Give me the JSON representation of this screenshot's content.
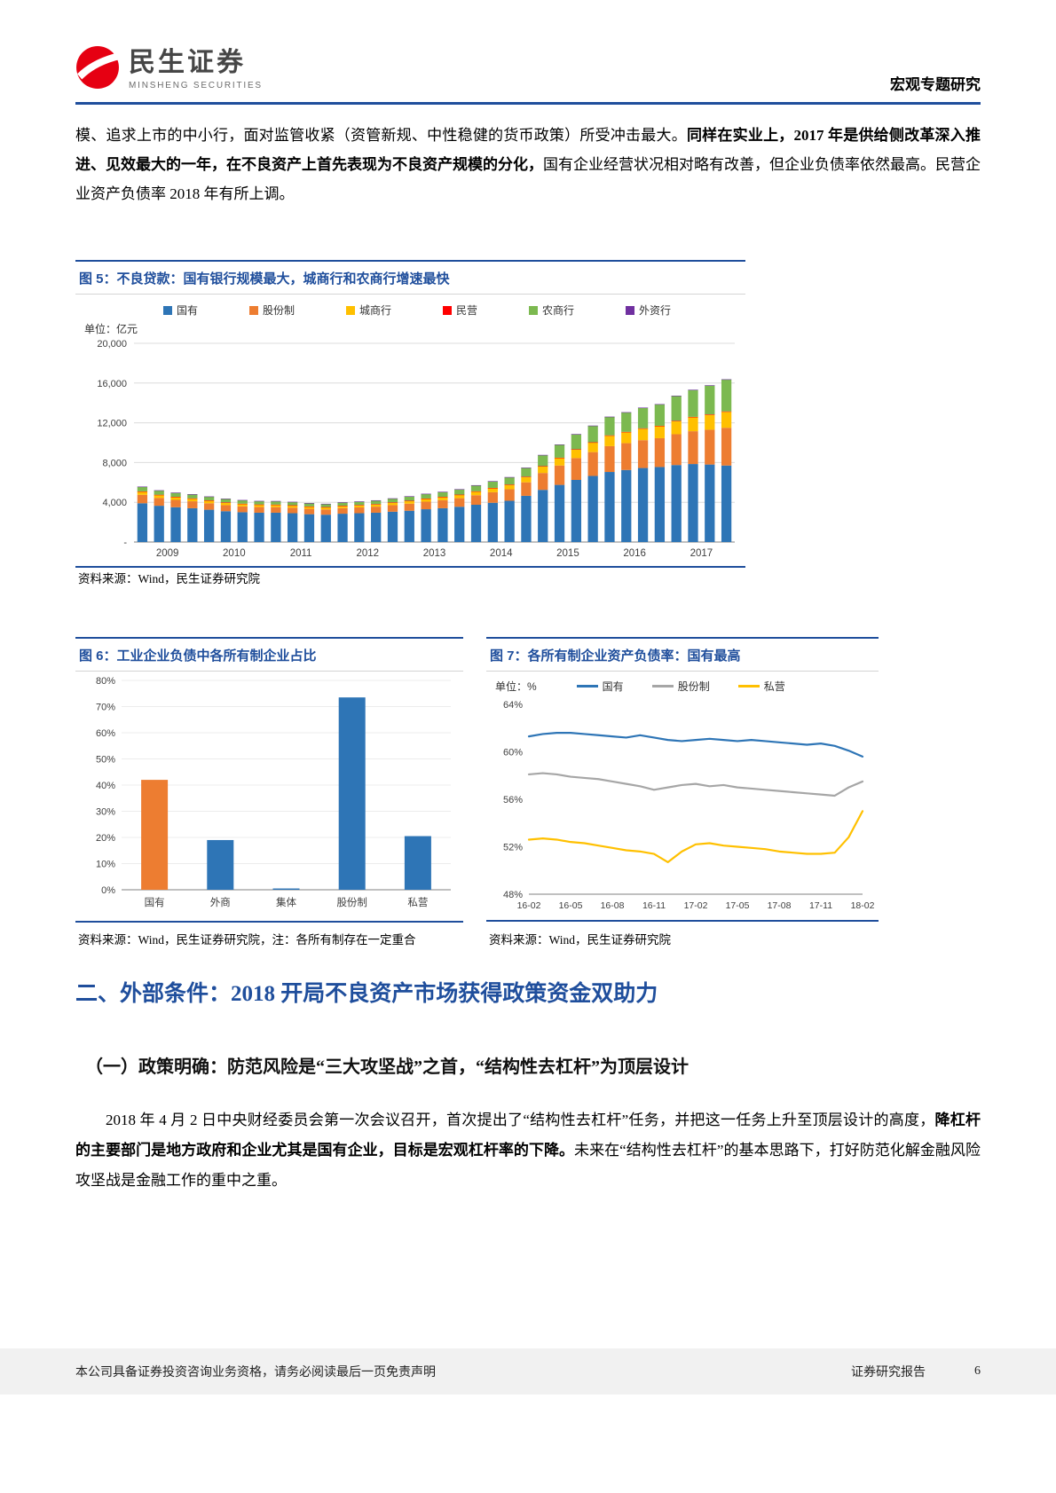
{
  "header": {
    "brand_cn": "民生证券",
    "brand_en": "MINSHENG SECURITIES",
    "report_type": "宏观专题研究"
  },
  "paragraph1": {
    "seg1": "模、追求上市的中小行，面对监管收紧（资管新规、中性稳健的货币政策）所受冲击最大。",
    "seg2_bold": "同样在实业上，2017 年是供给侧改革深入推进、见效最大的一年，在不良资产上首先表现为不良资产规模的分化，",
    "seg3": "国有企业经营状况相对略有改善，但企业负债率依然最高。民营企业资产负债率 2018 年有所上调。"
  },
  "figure5": {
    "title": "图 5：不良贷款：国有银行规模最大，城商行和农商行增速最快",
    "unit": "单位：亿元",
    "source": "资料来源：Wind，民生证券研究院"
  },
  "figure6": {
    "title": "图 6：工业企业负债中各所有制企业占比",
    "source": "资料来源：Wind，民生证券研究院，注：各所有制存在一定重合"
  },
  "figure7": {
    "title": "图 7：各所有制企业资产负债率：国有最高",
    "unit": "单位：%",
    "source": "资料来源：Wind，民生证券研究院"
  },
  "section": {
    "heading": "二、外部条件：2018 开局不良资产市场获得政策资金双助力",
    "subheading": "（一）政策明确：防范风险是“三大攻坚战”之首，“结构性去杠杆”为顶层设计"
  },
  "paragraph2": {
    "seg1": "2018 年 4 月 2 日中央财经委员会第一次会议召开，首次提出了“结构性去杠杆”任务，并把这一任务上升至顶层设计的高度，",
    "seg2_bold": "降杠杆的主要部门是地方政府和企业尤其是国有企业，目标是宏观杠杆率的下降。",
    "seg3": "未来在“结构性去杠杆”的基本思路下，打好防范化解金融风险攻坚战是金融工作的重中之重。"
  },
  "footer": {
    "left": "本公司具备证券投资咨询业务资格，请务必阅读最后一页免责声明",
    "right": "证券研究报告",
    "page": "6"
  },
  "colors": {
    "accent_blue": "#1F4E9C",
    "logo_red": "#E60012"
  },
  "chart_data": [
    {
      "id": "figure5",
      "type": "bar",
      "stacked": true,
      "title": "不良贷款：国有银行规模最大，城商行和农商行增速最快",
      "ylabel": "单位：亿元",
      "x_year_labels": [
        "2009",
        "2010",
        "2011",
        "2012",
        "2013",
        "2014",
        "2015",
        "2016",
        "2017"
      ],
      "quarters_per_year": 4,
      "ylim": [
        0,
        20000
      ],
      "yticks": [
        {
          "value": 0,
          "label": "-"
        },
        {
          "value": 4000,
          "label": "4,000"
        },
        {
          "value": 8000,
          "label": "8,000"
        },
        {
          "value": 12000,
          "label": "12,000"
        },
        {
          "value": 16000,
          "label": "16,000"
        },
        {
          "value": 20000,
          "label": "20,000"
        }
      ],
      "legend_position": "top",
      "grid": true,
      "series": [
        {
          "name": "国有",
          "color": "#2E75B6",
          "values": [
            3900,
            3650,
            3500,
            3400,
            3250,
            3100,
            3000,
            2950,
            2950,
            2900,
            2800,
            2750,
            2850,
            2900,
            2950,
            3050,
            3150,
            3300,
            3400,
            3550,
            3750,
            3950,
            4150,
            4650,
            5250,
            5750,
            6250,
            6650,
            7050,
            7250,
            7450,
            7550,
            7750,
            7850,
            7800,
            7700
          ]
        },
        {
          "name": "股份制",
          "color": "#ED7D31",
          "values": [
            850,
            780,
            740,
            700,
            650,
            610,
            590,
            570,
            560,
            550,
            540,
            530,
            560,
            580,
            610,
            660,
            710,
            760,
            810,
            860,
            960,
            1060,
            1160,
            1360,
            1700,
            1950,
            2200,
            2400,
            2600,
            2700,
            2800,
            2900,
            3100,
            3300,
            3500,
            3800
          ]
        },
        {
          "name": "城商行",
          "color": "#FFC000",
          "values": [
            320,
            300,
            280,
            270,
            260,
            250,
            240,
            230,
            230,
            220,
            215,
            210,
            215,
            220,
            230,
            250,
            270,
            290,
            310,
            330,
            370,
            410,
            450,
            530,
            650,
            750,
            850,
            950,
            1050,
            1100,
            1150,
            1200,
            1300,
            1400,
            1500,
            1600
          ]
        },
        {
          "name": "民营",
          "color": "#FF0000",
          "values": [
            30,
            30,
            30,
            30,
            30,
            30,
            30,
            30,
            30,
            30,
            30,
            30,
            30,
            30,
            30,
            30,
            30,
            30,
            30,
            30,
            30,
            30,
            30,
            40,
            40,
            40,
            40,
            40,
            40,
            40,
            50,
            50,
            50,
            50,
            50,
            50
          ]
        },
        {
          "name": "农商行",
          "color": "#7CB950",
          "values": [
            450,
            420,
            400,
            390,
            370,
            350,
            340,
            330,
            330,
            320,
            310,
            300,
            320,
            330,
            350,
            380,
            420,
            450,
            480,
            520,
            580,
            650,
            720,
            880,
            1100,
            1300,
            1500,
            1650,
            1850,
            1950,
            2050,
            2150,
            2500,
            2700,
            2900,
            3200
          ]
        },
        {
          "name": "外资行",
          "color": "#7030A0",
          "values": [
            30,
            30,
            30,
            30,
            30,
            30,
            30,
            30,
            30,
            30,
            30,
            30,
            30,
            30,
            30,
            30,
            30,
            30,
            30,
            30,
            30,
            30,
            30,
            30,
            30,
            30,
            30,
            30,
            30,
            30,
            30,
            30,
            30,
            30,
            30,
            30
          ]
        }
      ]
    },
    {
      "id": "figure6",
      "type": "bar",
      "title": "工业企业负债中各所有制企业占比",
      "categories": [
        "国有",
        "外商",
        "集体",
        "股份制",
        "私营"
      ],
      "values": [
        42,
        19,
        0.5,
        73.5,
        20.5
      ],
      "bar_colors": [
        "#ED7D31",
        "#2E75B6",
        "#2E75B6",
        "#2E75B6",
        "#2E75B6"
      ],
      "ylim": [
        0,
        80
      ],
      "ytick_step": 10,
      "ytick_suffix": "%",
      "grid": true
    },
    {
      "id": "figure7",
      "type": "line",
      "title": "各所有制企业资产负债率：国有最高",
      "ylabel": "单位：%",
      "x_labels": [
        "16-02",
        "16-05",
        "16-08",
        "16-11",
        "17-02",
        "17-05",
        "17-08",
        "17-11",
        "18-02"
      ],
      "points_per_tick": 3,
      "ylim": [
        48,
        64
      ],
      "yticks": [
        48,
        52,
        56,
        60,
        64
      ],
      "ytick_suffix": "%",
      "legend_position": "top",
      "grid": false,
      "series": [
        {
          "name": "国有",
          "color": "#2E75B6",
          "values": [
            61.3,
            61.5,
            61.6,
            61.6,
            61.5,
            61.4,
            61.3,
            61.2,
            61.4,
            61.2,
            61.0,
            60.9,
            61.0,
            61.1,
            61.0,
            60.9,
            61.0,
            60.9,
            60.8,
            60.7,
            60.6,
            60.7,
            60.5,
            60.1,
            59.6
          ]
        },
        {
          "name": "股份制",
          "color": "#A6A6A6",
          "values": [
            58.1,
            58.2,
            58.1,
            57.9,
            57.8,
            57.7,
            57.5,
            57.3,
            57.1,
            56.8,
            57.0,
            57.2,
            57.3,
            57.1,
            57.2,
            57.0,
            56.9,
            56.8,
            56.7,
            56.6,
            56.5,
            56.4,
            56.3,
            57.0,
            57.5
          ]
        },
        {
          "name": "私营",
          "color": "#FFC000",
          "values": [
            52.6,
            52.7,
            52.6,
            52.4,
            52.3,
            52.1,
            51.9,
            51.7,
            51.6,
            51.4,
            50.7,
            51.6,
            52.2,
            52.3,
            52.1,
            52.0,
            51.9,
            51.8,
            51.6,
            51.5,
            51.4,
            51.4,
            51.5,
            52.8,
            55.0
          ]
        }
      ]
    }
  ]
}
